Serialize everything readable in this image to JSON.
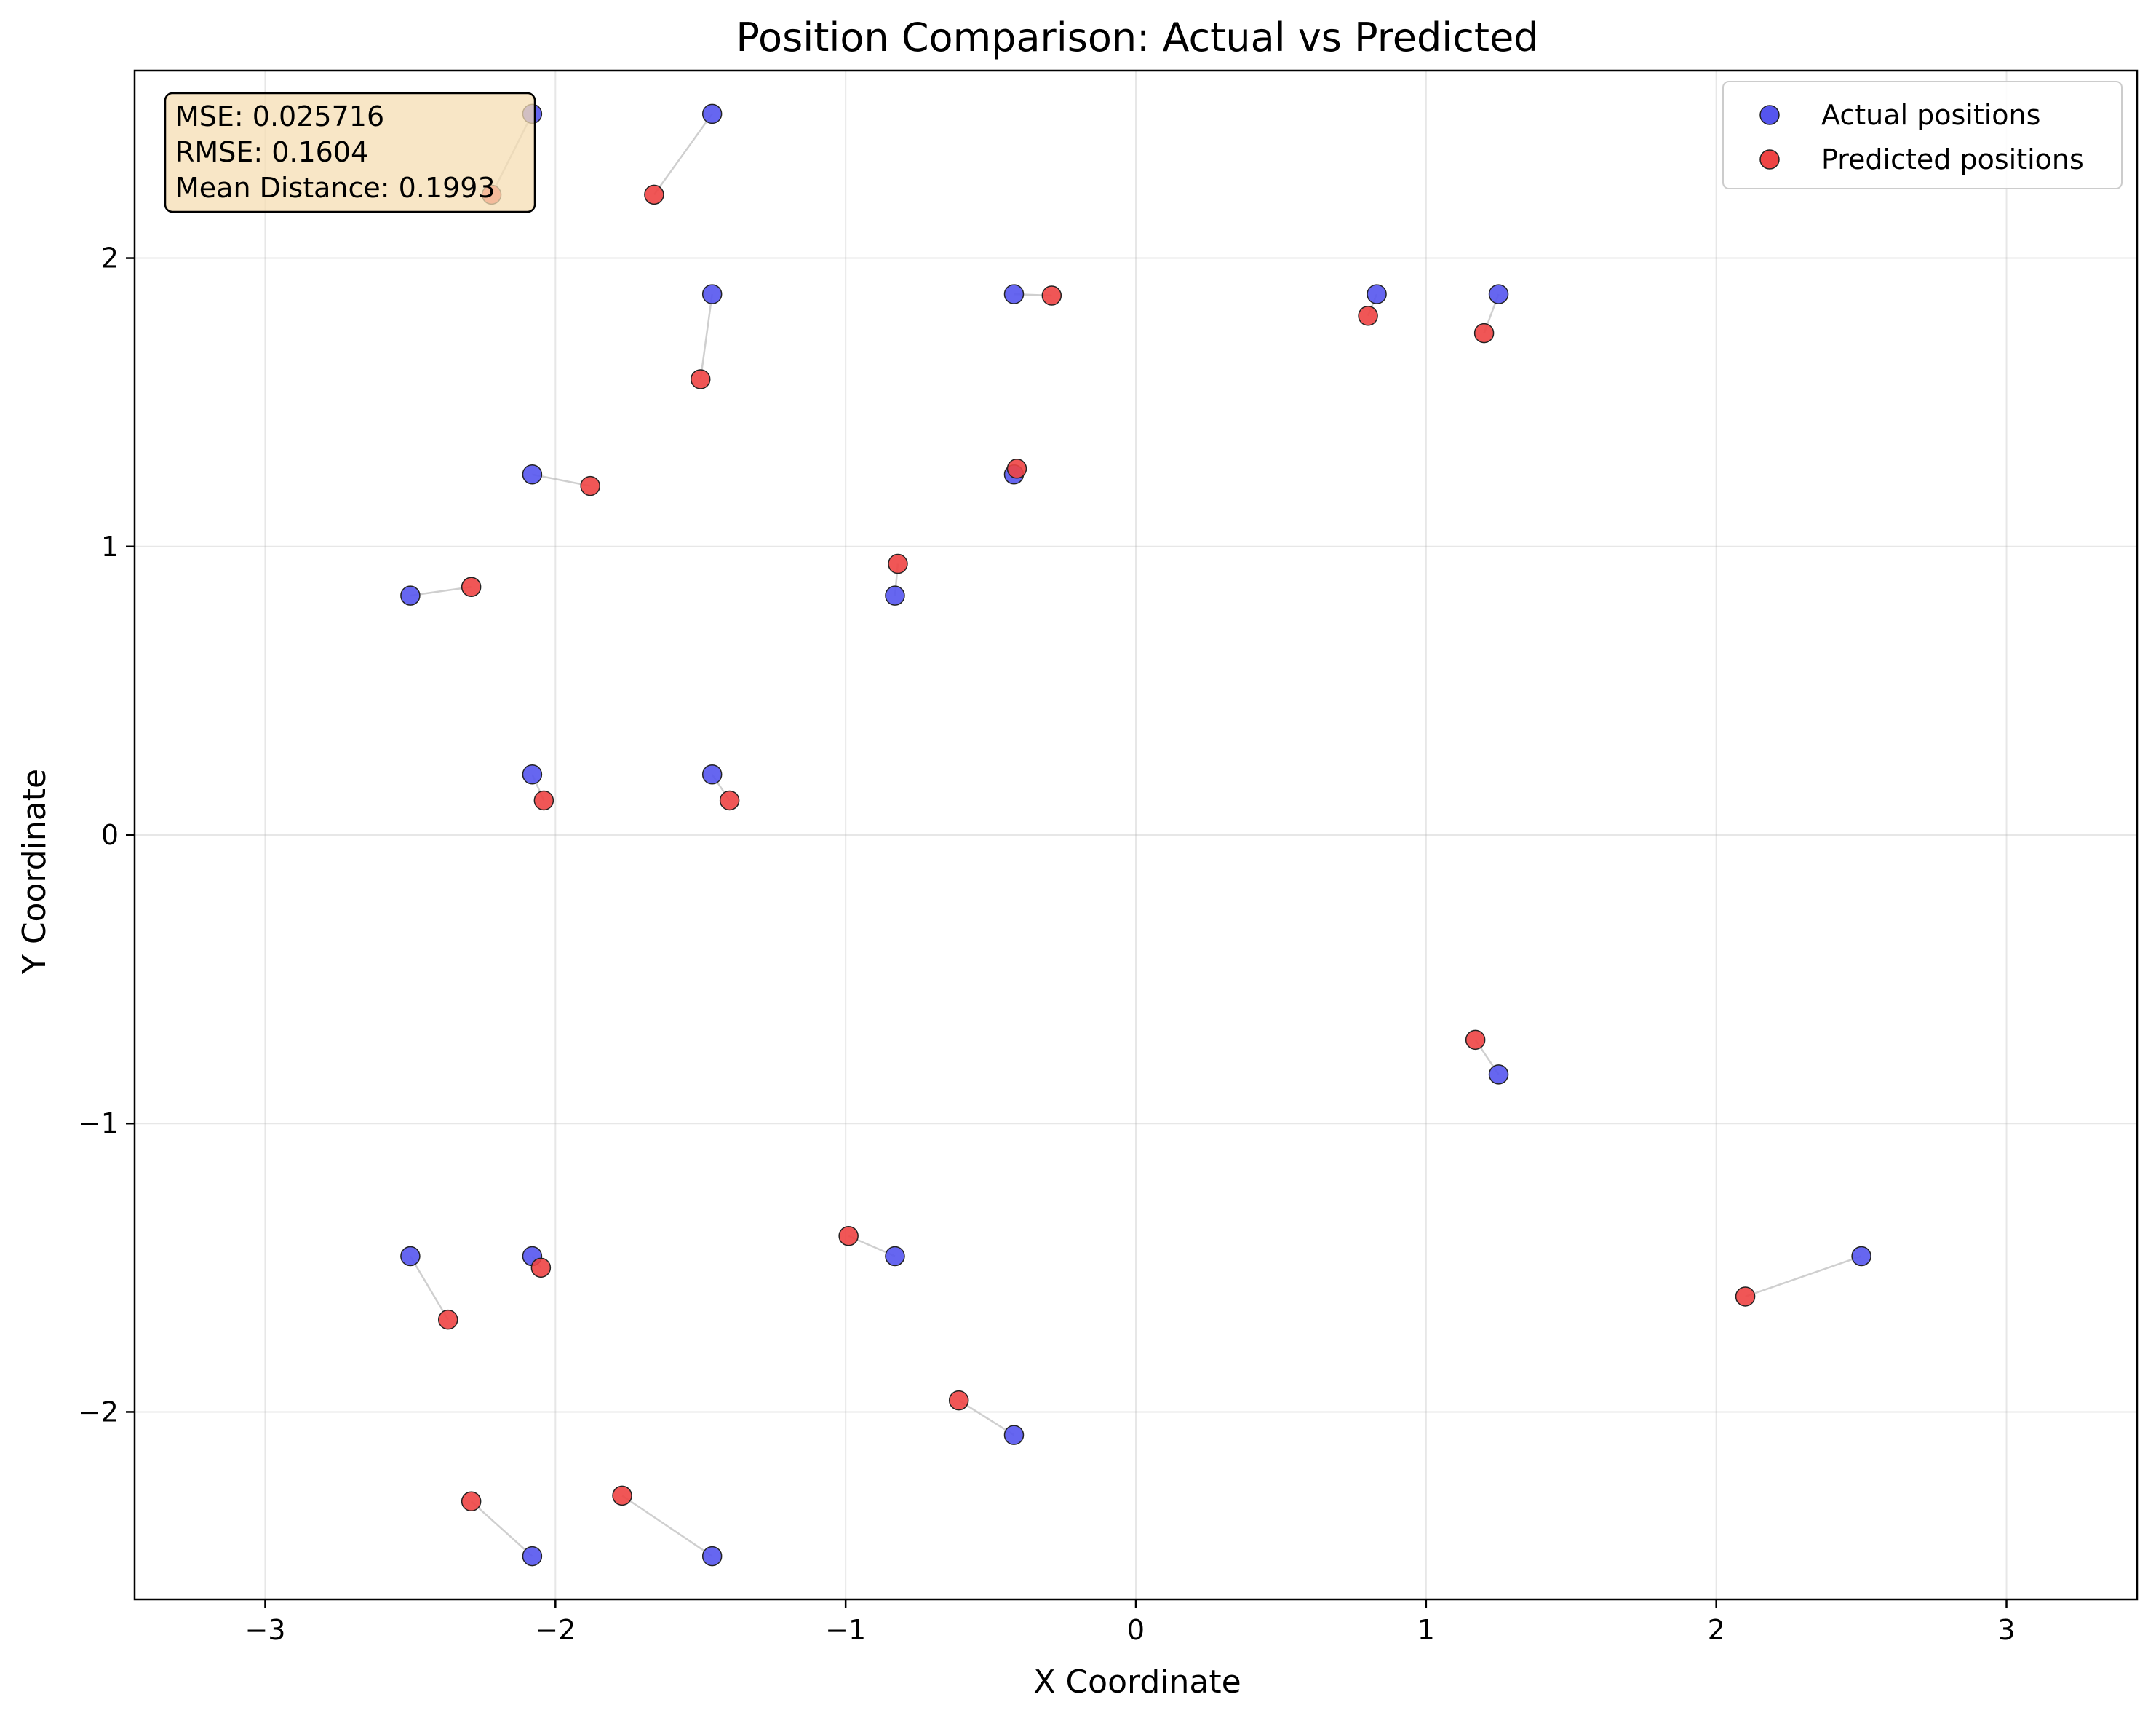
{
  "chart_data": {
    "type": "scatter",
    "title": "Position Comparison: Actual vs Predicted",
    "xlabel": "X Coordinate",
    "ylabel": "Y Coordinate",
    "xlim": [
      -3.45,
      3.45
    ],
    "ylim": [
      -2.65,
      2.65
    ],
    "x_ticks": [
      -3,
      -2,
      -1,
      0,
      1,
      2,
      3
    ],
    "y_ticks": [
      -2,
      -1,
      0,
      1,
      2
    ],
    "x_tick_labels": [
      "−3",
      "−2",
      "−1",
      "0",
      "1",
      "2",
      "3"
    ],
    "y_tick_labels": [
      "−2",
      "−1",
      "0",
      "1",
      "2"
    ],
    "grid": true,
    "legend_position": "top-right",
    "series": [
      {
        "name": "Actual positions",
        "color": "#5555ee",
        "points": [
          [
            -2.08,
            2.5
          ],
          [
            -1.46,
            2.5
          ],
          [
            -1.46,
            1.875
          ],
          [
            -0.42,
            1.875
          ],
          [
            0.83,
            1.875
          ],
          [
            1.25,
            1.875
          ],
          [
            -2.08,
            1.25
          ],
          [
            -0.42,
            1.25
          ],
          [
            -2.5,
            0.83
          ],
          [
            -0.83,
            0.83
          ],
          [
            -2.08,
            0.21
          ],
          [
            -1.46,
            0.21
          ],
          [
            1.25,
            -0.83
          ],
          [
            -2.5,
            -1.46
          ],
          [
            -2.08,
            -1.46
          ],
          [
            -0.83,
            -1.46
          ],
          [
            2.5,
            -1.46
          ],
          [
            -0.42,
            -2.08
          ],
          [
            -2.08,
            -2.5
          ],
          [
            -1.46,
            -2.5
          ]
        ]
      },
      {
        "name": "Predicted positions",
        "color": "#ee4444",
        "points": [
          [
            -2.22,
            2.22
          ],
          [
            -1.66,
            2.22
          ],
          [
            -1.5,
            1.58
          ],
          [
            -0.29,
            1.87
          ],
          [
            0.8,
            1.8
          ],
          [
            1.2,
            1.74
          ],
          [
            -1.88,
            1.21
          ],
          [
            -0.41,
            1.27
          ],
          [
            -2.29,
            0.86
          ],
          [
            -0.82,
            0.94
          ],
          [
            -2.04,
            0.12
          ],
          [
            -1.4,
            0.12
          ],
          [
            1.17,
            -0.71
          ],
          [
            -2.37,
            -1.68
          ],
          [
            -2.05,
            -1.5
          ],
          [
            -0.99,
            -1.39
          ],
          [
            2.1,
            -1.6
          ],
          [
            -0.61,
            -1.96
          ],
          [
            -2.29,
            -2.31
          ],
          [
            -1.77,
            -2.29
          ]
        ]
      }
    ],
    "connector_color": "#bbbbbb",
    "stats_box": {
      "lines": [
        "MSE: 0.025716",
        "RMSE: 0.1604",
        "Mean Distance: 0.1993"
      ],
      "background": "#f5deb3"
    }
  }
}
